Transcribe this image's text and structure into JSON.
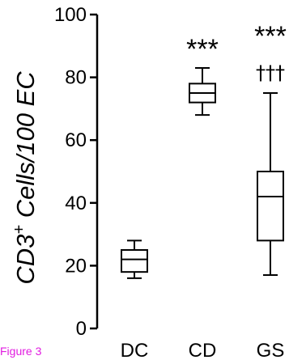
{
  "chart_data": {
    "type": "box",
    "ylabel_main": "CD3",
    "ylabel_sup": "+",
    "ylabel_rest": " Cells/100 EC",
    "ylim": [
      0,
      100
    ],
    "yticks": [
      "0",
      "20",
      "40",
      "60",
      "80",
      "100"
    ],
    "categories": [
      "DC",
      "CD",
      "GS"
    ],
    "boxes": [
      {
        "category": "DC",
        "min": 16,
        "q1": 18,
        "median": 22,
        "q3": 25,
        "max": 28,
        "sig": "",
        "sig2": ""
      },
      {
        "category": "CD",
        "min": 68,
        "q1": 72,
        "median": 75,
        "q3": 78,
        "max": 83,
        "sig": "***",
        "sig2": ""
      },
      {
        "category": "GS",
        "min": 17,
        "q1": 28,
        "median": 42,
        "q3": 50,
        "max": 75,
        "sig": "***",
        "sig2": "†††"
      }
    ],
    "grid": false
  },
  "caption": "Figure 3"
}
